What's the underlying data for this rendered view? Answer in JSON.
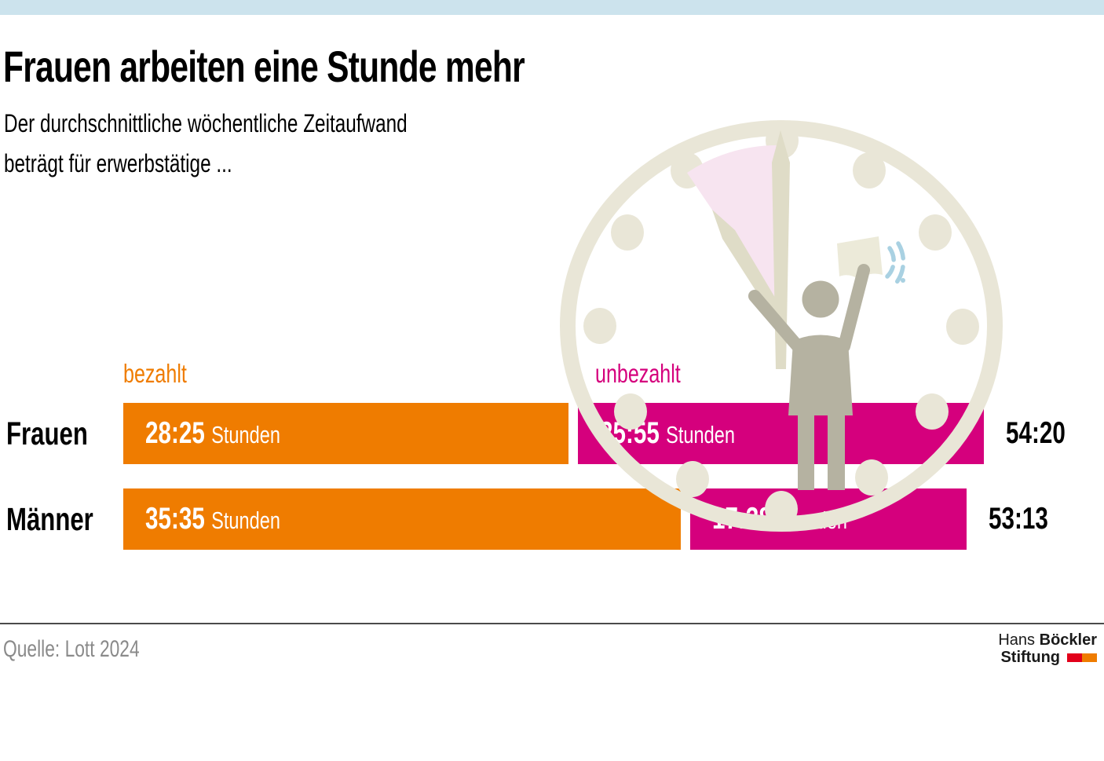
{
  "page": {
    "topbar_color": "#cce3ed",
    "background": "#ffffff"
  },
  "header": {
    "title": "Frauen arbeiten eine Stunde mehr",
    "subtitle_line1": "Der durchschnittliche wöchentliche Zeitaufwand",
    "subtitle_line2": "beträgt für erwerbstätige ..."
  },
  "chart_data": {
    "type": "bar",
    "orientation": "horizontal",
    "stacked": true,
    "unit_label": "Stunden",
    "categories": [
      "Frauen",
      "Männer"
    ],
    "series": [
      {
        "name": "bezahlt",
        "color": "#ef7c00",
        "values": [
          "28:25",
          "35:35"
        ],
        "hours": [
          28.4167,
          35.5833
        ]
      },
      {
        "name": "unbezahlt",
        "color": "#d5007d",
        "values": [
          "25:55",
          "17:38"
        ],
        "hours": [
          25.9167,
          17.6333
        ]
      }
    ],
    "totals": [
      "54:20",
      "53:13"
    ],
    "legend_position": "above-bars"
  },
  "illustration": {
    "name": "clock-with-woman-figure",
    "clock_color": "#e9e6d7",
    "hands_color": "#dfdcc7",
    "wedge_color": "#f7e4f0",
    "figure_color": "#b5b2a1",
    "paper_color": "#ecead9",
    "motion_color": "#a9d1e2"
  },
  "footer": {
    "source": "Quelle: Lott 2024",
    "logo": {
      "name_regular": "Hans",
      "name_bold": "Böckler",
      "line2_bold": "Stiftung",
      "square1_color": "#e2001a",
      "square2_color": "#ef7c00"
    }
  }
}
